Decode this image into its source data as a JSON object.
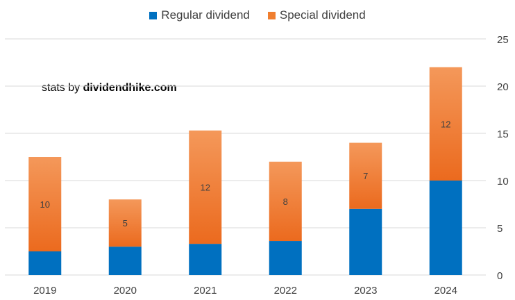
{
  "watermark": {
    "prefix": "stats by ",
    "site": "dividendhike.com"
  },
  "colors": {
    "regular": "#0070C0",
    "special_top": "#F4985A",
    "special_bottom": "#EB6A1E",
    "grid": "#D9D9D9",
    "axis_text": "#404040"
  },
  "chart_data": {
    "type": "bar",
    "stacked": true,
    "categories": [
      "2019",
      "2020",
      "2021",
      "2022",
      "2023",
      "2024"
    ],
    "series": [
      {
        "name": "Regular dividend",
        "values": [
          2.5,
          3,
          3.3,
          3.6,
          7,
          10
        ]
      },
      {
        "name": "Special dividend",
        "values": [
          10,
          5,
          12,
          8.4,
          7,
          12
        ]
      }
    ],
    "data_labels": {
      "Special dividend": [
        "10",
        "5",
        "12",
        "8",
        "7",
        "12"
      ]
    },
    "ylim": [
      0,
      25
    ],
    "yticks": [
      0,
      5,
      10,
      15,
      20,
      25
    ],
    "y_axis_side": "right",
    "grid": true,
    "legend": "top-center",
    "title": "",
    "xlabel": "",
    "ylabel": ""
  }
}
